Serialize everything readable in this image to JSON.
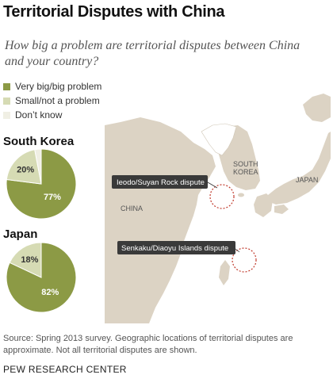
{
  "title": "Territorial Disputes with China",
  "subtitle": "How big a problem are territorial disputes between China and your country?",
  "legend": [
    {
      "label": "Very big/big problem",
      "color": "#8c9a45"
    },
    {
      "label": "Small/not a problem",
      "color": "#d6dbb4"
    },
    {
      "label": "Don’t know",
      "color": "#f0efe4"
    }
  ],
  "chart_data": [
    {
      "type": "pie",
      "title": "South Korea",
      "series": [
        {
          "name": "Very big/big problem",
          "value": 77,
          "label": "77%",
          "color": "#8c9a45"
        },
        {
          "name": "Small/not a problem",
          "value": 20,
          "label": "20%",
          "color": "#d6dbb4"
        },
        {
          "name": "Don’t know",
          "value": 3,
          "label": "",
          "color": "#f0efe4"
        }
      ]
    },
    {
      "type": "pie",
      "title": "Japan",
      "series": [
        {
          "name": "Very big/big problem",
          "value": 82,
          "label": "82%",
          "color": "#8c9a45"
        },
        {
          "name": "Small/not a problem",
          "value": 18,
          "label": "18%",
          "color": "#d6dbb4"
        },
        {
          "name": "Don’t know",
          "value": 0,
          "label": "",
          "color": "#f0efe4"
        }
      ]
    }
  ],
  "map": {
    "labels": {
      "south_korea": [
        "SOUTH",
        "KOREA"
      ],
      "japan": "JAPAN",
      "china": "CHINA"
    },
    "callouts": {
      "ieodo": "Ieodo/Suyan Rock dispute",
      "senkaku": "Senkaku/Diaoyu Islands dispute"
    },
    "colors": {
      "land": "#dcd3c4",
      "sea": "#ffffff",
      "highlight": "#ffffff",
      "circle": "#c0392b"
    }
  },
  "source": "Source: Spring 2013 survey. Geographic locations of territorial disputes are approximate. Not all territorial disputes are shown.",
  "org": "PEW RESEARCH CENTER"
}
